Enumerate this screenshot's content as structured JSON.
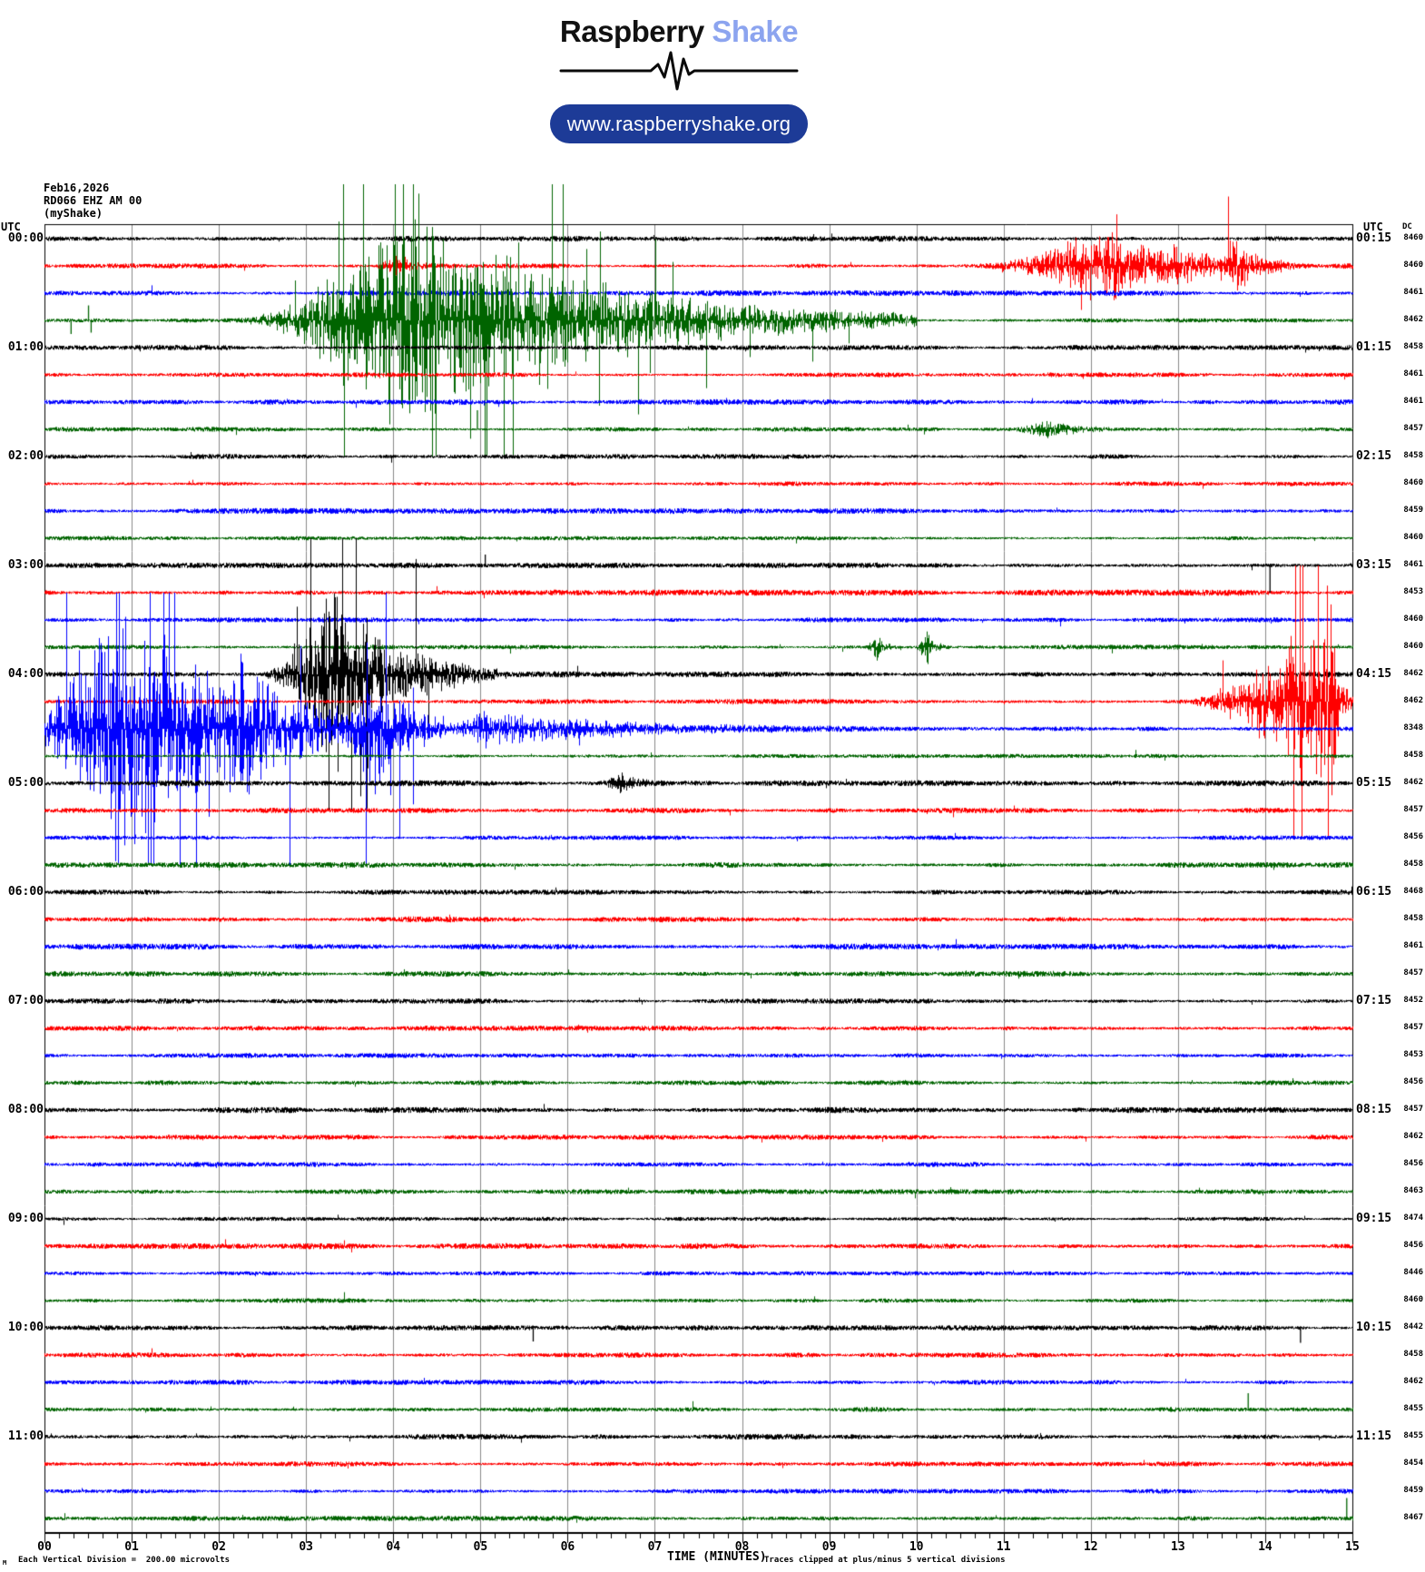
{
  "header": {
    "brand_black": "Raspberry",
    "brand_blue": "Shake",
    "url": "www.raspberryshake.org",
    "pill_color": "#1d3b97",
    "brand_blue_color": "#8CA4EF"
  },
  "station": {
    "date": "Feb16,2026",
    "id": "RD066 EHZ AM 00",
    "network": "(myShake)"
  },
  "plot": {
    "utc_label_left": "UTC",
    "utc_label_right": "UTC",
    "dc_label": "DC",
    "hours": [
      {
        "left": "00:00",
        "right": "00:15"
      },
      {
        "left": "01:00",
        "right": "01:15"
      },
      {
        "left": "02:00",
        "right": "02:15"
      },
      {
        "left": "03:00",
        "right": "03:15"
      },
      {
        "left": "04:00",
        "right": "04:15"
      },
      {
        "left": "05:00",
        "right": "05:15"
      },
      {
        "left": "06:00",
        "right": "06:15"
      },
      {
        "left": "07:00",
        "right": "07:15"
      },
      {
        "left": "08:00",
        "right": "08:15"
      },
      {
        "left": "09:00",
        "right": "09:15"
      },
      {
        "left": "10:00",
        "right": "10:15"
      },
      {
        "left": "11:00",
        "right": "11:15"
      }
    ],
    "x_ticks": [
      "00",
      "01",
      "02",
      "03",
      "04",
      "05",
      "06",
      "07",
      "08",
      "09",
      "10",
      "11",
      "12",
      "13",
      "14",
      "15"
    ]
  },
  "footer": {
    "scale_marker": "M",
    "scale_text": "Each Vertical Division =  200.00 microvolts",
    "axis_title": "TIME (MINUTES)",
    "clip_note": "Traces clipped at plus/minus 5 vertical divisions"
  },
  "chart_data": {
    "type": "helicorder",
    "title": "RD066 EHZ AM 00 (myShake) helicorder record, Feb16,2026",
    "x_axis": {
      "label": "TIME (MINUTES)",
      "min": 0,
      "max": 15,
      "major_tick_minutes": 1,
      "minor_ticks_per_minute": 6
    },
    "row_duration_minutes": 15,
    "division_microvolts": 200,
    "clip_divisions": 5,
    "colors": {
      "trace_cycle": [
        "#000000",
        "#ff0000",
        "#0000ff",
        "#006400"
      ],
      "grid": "#888888",
      "frame": "#000000"
    },
    "rows": [
      {
        "utc": "00:00",
        "color": "black",
        "dc": 8460
      },
      {
        "utc": "00:15",
        "color": "red",
        "dc": 8460
      },
      {
        "utc": "00:30",
        "color": "blue",
        "dc": 8461
      },
      {
        "utc": "00:45",
        "color": "green",
        "dc": 8462
      },
      {
        "utc": "01:00",
        "color": "black",
        "dc": 8458
      },
      {
        "utc": "01:15",
        "color": "red",
        "dc": 8461
      },
      {
        "utc": "01:30",
        "color": "blue",
        "dc": 8461
      },
      {
        "utc": "01:45",
        "color": "green",
        "dc": 8457
      },
      {
        "utc": "02:00",
        "color": "black",
        "dc": 8458
      },
      {
        "utc": "02:15",
        "color": "red",
        "dc": 8460
      },
      {
        "utc": "02:30",
        "color": "blue",
        "dc": 8459
      },
      {
        "utc": "02:45",
        "color": "green",
        "dc": 8460
      },
      {
        "utc": "03:00",
        "color": "black",
        "dc": 8461
      },
      {
        "utc": "03:15",
        "color": "red",
        "dc": 8453
      },
      {
        "utc": "03:30",
        "color": "blue",
        "dc": 8460
      },
      {
        "utc": "03:45",
        "color": "green",
        "dc": 8460
      },
      {
        "utc": "04:00",
        "color": "black",
        "dc": 8462
      },
      {
        "utc": "04:15",
        "color": "red",
        "dc": 8462
      },
      {
        "utc": "04:30",
        "color": "blue",
        "dc": 8348
      },
      {
        "utc": "04:45",
        "color": "green",
        "dc": 8458
      },
      {
        "utc": "05:00",
        "color": "black",
        "dc": 8462
      },
      {
        "utc": "05:15",
        "color": "red",
        "dc": 8457
      },
      {
        "utc": "05:30",
        "color": "blue",
        "dc": 8456
      },
      {
        "utc": "05:45",
        "color": "green",
        "dc": 8458
      },
      {
        "utc": "06:00",
        "color": "black",
        "dc": 8468
      },
      {
        "utc": "06:15",
        "color": "red",
        "dc": 8458
      },
      {
        "utc": "06:30",
        "color": "blue",
        "dc": 8461
      },
      {
        "utc": "06:45",
        "color": "green",
        "dc": 8457
      },
      {
        "utc": "07:00",
        "color": "black",
        "dc": 8452
      },
      {
        "utc": "07:15",
        "color": "red",
        "dc": 8457
      },
      {
        "utc": "07:30",
        "color": "blue",
        "dc": 8453
      },
      {
        "utc": "07:45",
        "color": "green",
        "dc": 8456
      },
      {
        "utc": "08:00",
        "color": "black",
        "dc": 8457
      },
      {
        "utc": "08:15",
        "color": "red",
        "dc": 8462
      },
      {
        "utc": "08:30",
        "color": "blue",
        "dc": 8456
      },
      {
        "utc": "08:45",
        "color": "green",
        "dc": 8463
      },
      {
        "utc": "09:00",
        "color": "black",
        "dc": 8474
      },
      {
        "utc": "09:15",
        "color": "red",
        "dc": 8456
      },
      {
        "utc": "09:30",
        "color": "blue",
        "dc": 8446
      },
      {
        "utc": "09:45",
        "color": "green",
        "dc": 8460
      },
      {
        "utc": "10:00",
        "color": "black",
        "dc": 8442
      },
      {
        "utc": "10:15",
        "color": "red",
        "dc": 8458
      },
      {
        "utc": "10:30",
        "color": "blue",
        "dc": 8462
      },
      {
        "utc": "10:45",
        "color": "green",
        "dc": 8455
      },
      {
        "utc": "11:00",
        "color": "black",
        "dc": 8455
      },
      {
        "utc": "11:15",
        "color": "red",
        "dc": 8454
      },
      {
        "utc": "11:30",
        "color": "blue",
        "dc": 8459
      },
      {
        "utc": "11:45",
        "color": "green",
        "dc": 8467
      }
    ],
    "events": [
      {
        "row": 1,
        "t0": 3.7,
        "tp": 4.05,
        "t1": 4.7,
        "amp": 0.5,
        "spiky": 0.06
      },
      {
        "row": 1,
        "t0": 10.6,
        "tp": 12.15,
        "t1": 13.4,
        "amp": 1.7,
        "spiky": 0.22
      },
      {
        "row": 1,
        "t0": 12.2,
        "tp": 13.0,
        "t1": 15.0,
        "amp": 0.55,
        "spiky": 0.05
      },
      {
        "row": 1,
        "t0": 13.45,
        "tp": 13.62,
        "t1": 14.3,
        "amp": 1.05,
        "spiky": 0.12
      },
      {
        "row": 3,
        "t0": 2.1,
        "tp": 4.1,
        "t1": 10.0,
        "amp": 5.0,
        "spiky": 0.5
      },
      {
        "row": 7,
        "t0": 10.9,
        "tp": 11.5,
        "t1": 12.6,
        "amp": 0.35,
        "spiky": 0.02
      },
      {
        "row": 15,
        "t0": 9.38,
        "tp": 9.55,
        "t1": 9.78,
        "amp": 0.55,
        "spiky": 0.05
      },
      {
        "row": 15,
        "t0": 9.95,
        "tp": 10.12,
        "t1": 10.38,
        "amp": 0.7,
        "spiky": 0.05
      },
      {
        "row": 16,
        "t0": 2.4,
        "tp": 3.3,
        "t1": 5.2,
        "amp": 4.2,
        "spiky": 0.45
      },
      {
        "row": 17,
        "t0": 12.9,
        "tp": 14.75,
        "t1": 15.01,
        "amp": 4.5,
        "spiky": 0.5
      },
      {
        "row": 18,
        "t0": -0.6,
        "tp": 0.85,
        "t1": 4.6,
        "amp": 5.5,
        "spiky": 0.5
      },
      {
        "row": 18,
        "t0": 1.9,
        "tp": 2.25,
        "t1": 3.1,
        "amp": 1.8,
        "spiky": 0.35
      },
      {
        "row": 18,
        "t0": 3.3,
        "tp": 3.8,
        "t1": 4.8,
        "amp": 2.2,
        "spiky": 0.4
      },
      {
        "row": 18,
        "t0": 4.6,
        "tp": 5.0,
        "t1": 9.5,
        "amp": 0.7,
        "spiky": 0.04
      },
      {
        "row": 20,
        "t0": 6.3,
        "tp": 6.6,
        "t1": 7.1,
        "amp": 0.4,
        "spiky": 0.02
      }
    ],
    "spikes": [
      {
        "row": 3,
        "t": 0.3,
        "amp": -0.5
      },
      {
        "row": 3,
        "t": 0.5,
        "amp": 0.55
      },
      {
        "row": 3,
        "t": 0.53,
        "amp": -0.45
      },
      {
        "row": 7,
        "t": 4.96,
        "amp": 0.7
      },
      {
        "row": 12,
        "t": 5.05,
        "amp": 0.4
      },
      {
        "row": 12,
        "t": 14.05,
        "amp": -1.0
      },
      {
        "row": 40,
        "t": 5.6,
        "amp": -0.5
      },
      {
        "row": 40,
        "t": 14.4,
        "amp": -0.55
      },
      {
        "row": 43,
        "t": 13.8,
        "amp": 0.6
      },
      {
        "row": 47,
        "t": 14.93,
        "amp": 0.75
      }
    ]
  }
}
